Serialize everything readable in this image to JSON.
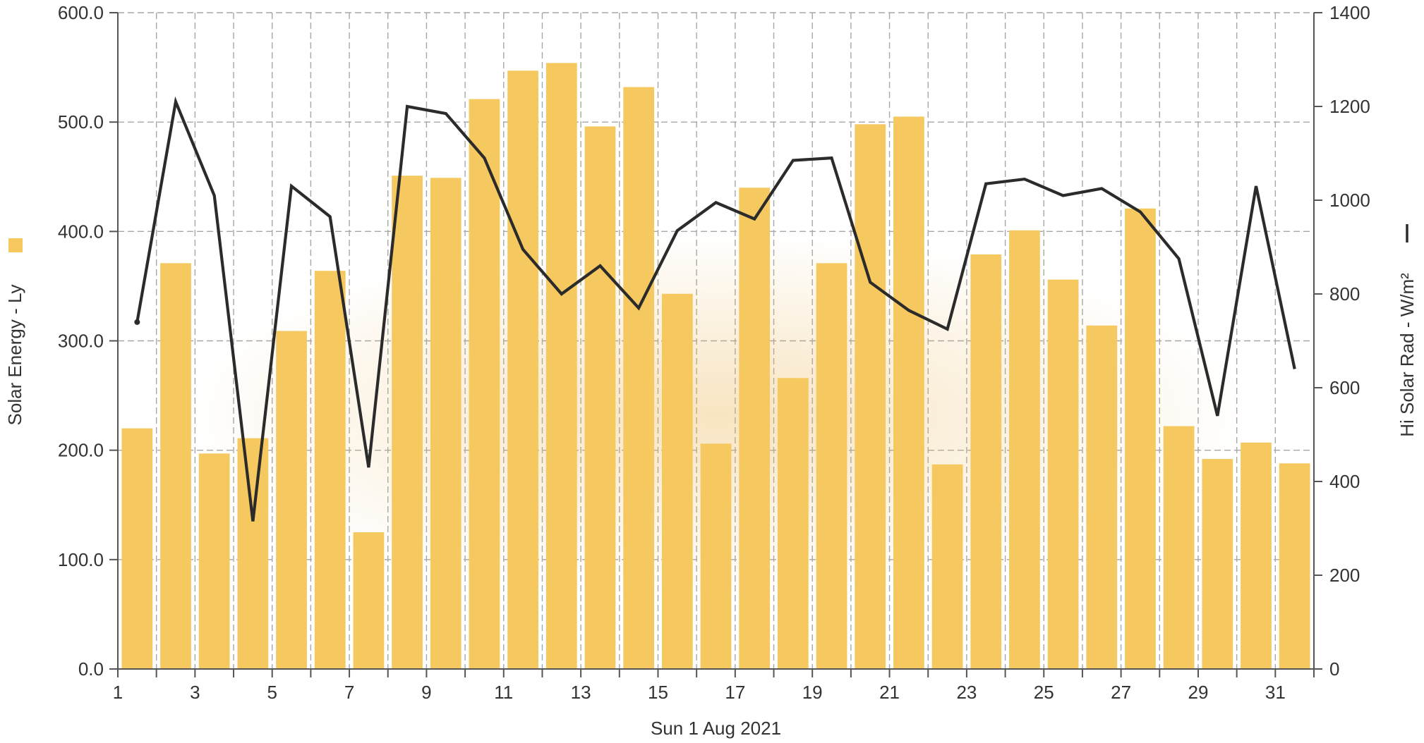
{
  "chart_data": {
    "type": "bar",
    "xlabel": "Sun 1 Aug 2021",
    "x_tick_labels": [
      "1",
      "3",
      "5",
      "7",
      "9",
      "11",
      "13",
      "15",
      "17",
      "19",
      "21",
      "23",
      "25",
      "27",
      "29",
      "31"
    ],
    "days": [
      1,
      2,
      3,
      4,
      5,
      6,
      7,
      8,
      9,
      10,
      11,
      12,
      13,
      14,
      15,
      16,
      17,
      18,
      19,
      20,
      21,
      22,
      23,
      24,
      25,
      26,
      27,
      28,
      29,
      30,
      31
    ],
    "grid": true,
    "legend": "none",
    "left_axis": {
      "label": "Solar Energy - Ly",
      "ylim": [
        0,
        600
      ],
      "ticks": [
        "0.0",
        "100.0",
        "200.0",
        "300.0",
        "400.0",
        "500.0",
        "600.0"
      ]
    },
    "right_axis": {
      "label": "Hi Solar Rad - W/m²",
      "ylim": [
        0,
        1400
      ],
      "ticks": [
        "0",
        "200",
        "400",
        "600",
        "800",
        "1000",
        "1200",
        "1400"
      ]
    },
    "series": [
      {
        "name": "Solar Energy - Ly",
        "kind": "bar",
        "axis": "left",
        "color": "#f5c95f",
        "values": [
          220,
          371,
          197,
          211,
          309,
          364,
          125,
          451,
          449,
          521,
          547,
          554,
          496,
          532,
          343,
          206,
          440,
          266,
          371,
          498,
          505,
          187,
          379,
          401,
          356,
          314,
          421,
          222,
          192,
          207,
          188
        ]
      },
      {
        "name": "Hi Solar Rad - W/m²",
        "kind": "line",
        "axis": "right",
        "color": "#2b2b2b",
        "values": [
          740,
          1210,
          1010,
          315,
          1030,
          965,
          430,
          1200,
          1185,
          1090,
          895,
          800,
          860,
          770,
          935,
          995,
          960,
          1085,
          1090,
          825,
          765,
          725,
          1035,
          1045,
          1010,
          1025,
          975,
          875,
          540,
          1030,
          640
        ]
      }
    ]
  }
}
